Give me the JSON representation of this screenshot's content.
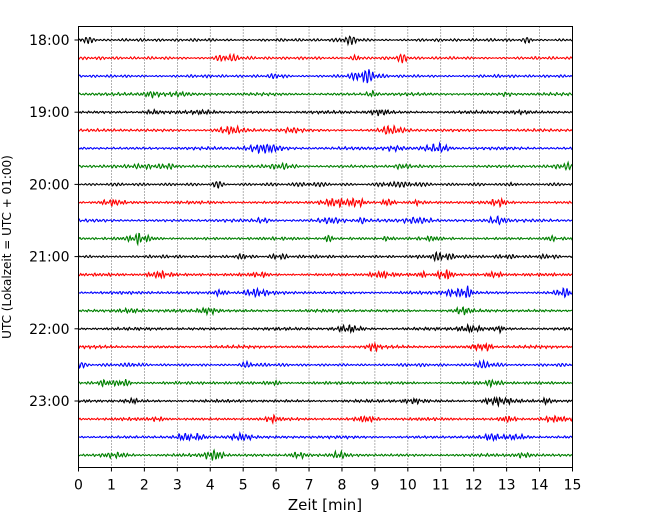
{
  "chart_data": {
    "type": "line",
    "title": "",
    "xlabel": "Zeit  [min]",
    "ylabel": "UTC (Lokalzeit = UTC + 01:00)",
    "xlim": [
      0,
      15
    ],
    "x_ticks": [
      "0",
      "1",
      "2",
      "3",
      "4",
      "5",
      "6",
      "7",
      "8",
      "9",
      "10",
      "11",
      "12",
      "13",
      "14",
      "15"
    ],
    "y_ticks": [
      "18:00",
      "19:00",
      "20:00",
      "21:00",
      "22:00",
      "23:00"
    ],
    "traces_per_hour": 4,
    "trace_interval_min": 15,
    "grid": "vertical dotted at each minute",
    "series": [
      {
        "start": "18:00",
        "color": "#000000"
      },
      {
        "start": "18:15",
        "color": "#ff0000"
      },
      {
        "start": "18:30",
        "color": "#0000ff"
      },
      {
        "start": "18:45",
        "color": "#008000"
      },
      {
        "start": "19:00",
        "color": "#000000"
      },
      {
        "start": "19:15",
        "color": "#ff0000"
      },
      {
        "start": "19:30",
        "color": "#0000ff"
      },
      {
        "start": "19:45",
        "color": "#008000"
      },
      {
        "start": "20:00",
        "color": "#000000"
      },
      {
        "start": "20:15",
        "color": "#ff0000"
      },
      {
        "start": "20:30",
        "color": "#0000ff"
      },
      {
        "start": "20:45",
        "color": "#008000"
      },
      {
        "start": "21:00",
        "color": "#000000"
      },
      {
        "start": "21:15",
        "color": "#ff0000"
      },
      {
        "start": "21:30",
        "color": "#0000ff"
      },
      {
        "start": "21:45",
        "color": "#008000"
      },
      {
        "start": "22:00",
        "color": "#000000"
      },
      {
        "start": "22:15",
        "color": "#ff0000"
      },
      {
        "start": "22:30",
        "color": "#0000ff"
      },
      {
        "start": "22:45",
        "color": "#008000"
      },
      {
        "start": "23:00",
        "color": "#000000"
      },
      {
        "start": "23:15",
        "color": "#ff0000"
      },
      {
        "start": "23:30",
        "color": "#0000ff"
      },
      {
        "start": "23:45",
        "color": "#008000"
      }
    ]
  }
}
